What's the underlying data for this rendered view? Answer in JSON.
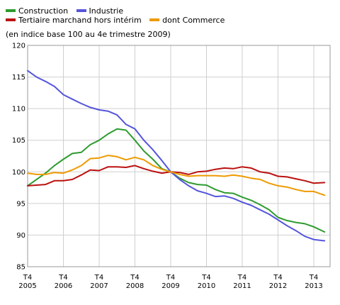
{
  "subtitle": "(en indice base 100 au 4e trimestre 2009)",
  "chart_data": {
    "type": "line",
    "title": "",
    "xlabel": "",
    "ylabel": "",
    "subtitle": "(en indice base 100 au 4e trimestre 2009)",
    "ylim": [
      85,
      120
    ],
    "yticks": [
      85,
      90,
      95,
      100,
      105,
      110,
      115,
      120
    ],
    "xlim": [
      0,
      8.3
    ],
    "x_tick_labels": [
      {
        "top": "T4",
        "bottom": "2005"
      },
      {
        "top": "T4",
        "bottom": "2006"
      },
      {
        "top": "T4",
        "bottom": "2007"
      },
      {
        "top": "T4",
        "bottom": "2008"
      },
      {
        "top": "T4",
        "bottom": "2009"
      },
      {
        "top": "T4",
        "bottom": "2010"
      },
      {
        "top": "T4",
        "bottom": "2011"
      },
      {
        "top": "T4",
        "bottom": "2012"
      },
      {
        "top": "T4",
        "bottom": "2013"
      }
    ],
    "grid": true,
    "legend_position": "top-left",
    "series": [
      {
        "name": "Construction",
        "color": "#2e9b2e",
        "x": [
          0,
          0.5,
          0.75,
          1.0,
          1.25,
          1.5,
          1.75,
          2.0,
          2.25,
          2.5,
          2.75,
          3.0,
          3.25,
          3.5,
          3.75,
          4.0,
          4.25,
          4.5,
          4.75,
          5.0,
          5.25,
          5.5,
          5.75,
          6.0,
          6.25,
          6.5,
          6.75,
          7.0,
          7.25,
          7.5,
          7.75,
          8.0,
          8.3
        ],
        "y": [
          97.8,
          99.8,
          101.0,
          102.0,
          102.9,
          103.1,
          104.3,
          105.0,
          106.0,
          106.8,
          106.6,
          105.0,
          103.3,
          102.0,
          100.5,
          100.0,
          99.0,
          98.3,
          98.0,
          97.9,
          97.2,
          96.7,
          96.6,
          96.0,
          95.5,
          94.8,
          94.0,
          92.8,
          92.3,
          92.0,
          91.8,
          91.3,
          90.5
        ]
      },
      {
        "name": "Industrie",
        "color": "#5555dd",
        "x": [
          0,
          0.25,
          0.5,
          0.75,
          1.0,
          1.25,
          1.5,
          1.75,
          2.0,
          2.25,
          2.5,
          2.75,
          3.0,
          3.25,
          3.5,
          3.75,
          4.0,
          4.25,
          4.5,
          4.75,
          5.0,
          5.25,
          5.5,
          5.75,
          6.0,
          6.25,
          6.5,
          6.75,
          7.0,
          7.25,
          7.5,
          7.75,
          8.0,
          8.3
        ],
        "y": [
          116.0,
          115.0,
          114.3,
          113.5,
          112.2,
          111.5,
          110.8,
          110.2,
          109.8,
          109.6,
          109.0,
          107.5,
          106.8,
          105.0,
          103.5,
          101.8,
          100.0,
          98.8,
          97.8,
          97.0,
          96.6,
          96.1,
          96.2,
          95.8,
          95.2,
          94.7,
          94.0,
          93.3,
          92.4,
          91.5,
          90.7,
          89.8,
          89.3,
          89.1
        ]
      },
      {
        "name": "Tertiaire marchand hors intérim",
        "color": "#bb1111",
        "x": [
          0,
          0.25,
          0.5,
          0.75,
          1.0,
          1.25,
          1.5,
          1.75,
          2.0,
          2.25,
          2.5,
          2.75,
          3.0,
          3.25,
          3.5,
          3.75,
          4.0,
          4.25,
          4.5,
          4.75,
          5.0,
          5.25,
          5.5,
          5.75,
          6.0,
          6.25,
          6.5,
          6.75,
          7.0,
          7.25,
          7.5,
          7.75,
          8.0,
          8.3
        ],
        "y": [
          97.8,
          97.9,
          98.0,
          98.6,
          98.6,
          98.8,
          99.5,
          100.3,
          100.2,
          100.8,
          100.8,
          100.7,
          101.0,
          100.5,
          100.1,
          99.8,
          100.0,
          99.9,
          99.6,
          100.0,
          100.1,
          100.4,
          100.6,
          100.5,
          100.8,
          100.6,
          100.0,
          99.8,
          99.3,
          99.2,
          98.9,
          98.6,
          98.2,
          98.3
        ]
      },
      {
        "name": "dont Commerce",
        "color": "#ee9a00",
        "x": [
          0,
          0.25,
          0.5,
          0.75,
          1.0,
          1.25,
          1.5,
          1.75,
          2.0,
          2.25,
          2.5,
          2.75,
          3.0,
          3.25,
          3.5,
          3.75,
          4.0,
          4.25,
          4.5,
          4.75,
          5.0,
          5.25,
          5.5,
          5.75,
          6.0,
          6.25,
          6.5,
          6.75,
          7.0,
          7.25,
          7.5,
          7.75,
          8.0,
          8.3
        ],
        "y": [
          99.8,
          99.6,
          99.6,
          99.9,
          99.8,
          100.3,
          101.0,
          102.1,
          102.2,
          102.6,
          102.4,
          101.9,
          102.3,
          101.9,
          101.0,
          100.4,
          100.0,
          99.6,
          99.3,
          99.4,
          99.4,
          99.4,
          99.3,
          99.5,
          99.3,
          99.0,
          98.8,
          98.2,
          97.8,
          97.6,
          97.2,
          96.9,
          96.9,
          96.3
        ]
      }
    ]
  }
}
